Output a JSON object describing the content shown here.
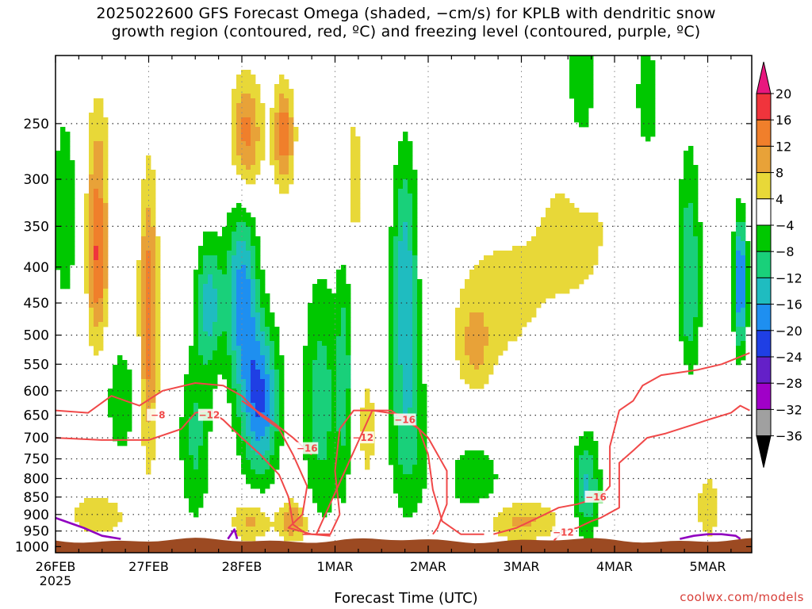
{
  "title": {
    "line1": "2025022600 GFS Forecast Omega (shaded, −cm/s) for KPLB with dendritic snow",
    "line2": "growth region (contoured, red, ºC) and freezing level (contoured, purple, ºC)"
  },
  "credit": "coolwx.com/models",
  "chart_data": {
    "type": "heatmap",
    "title": "2025022600 GFS Forecast Omega (shaded, −cm/s) for KPLB with dendritic snow growth region (contoured, red, ºC) and freezing level (contoured, purple, ºC)",
    "xlabel": "Forecast Time (UTC)",
    "ylabel": "",
    "x_ticks": [
      "26FEB",
      "27FEB",
      "28FEB",
      "1MAR",
      "2MAR",
      "3MAR",
      "4MAR",
      "5MAR"
    ],
    "x_first_tick_year": "2025",
    "x_range_days": [
      0,
      7.45
    ],
    "y_ticks_hpa": [
      250,
      300,
      350,
      400,
      450,
      500,
      550,
      600,
      650,
      700,
      750,
      800,
      850,
      900,
      950,
      1000
    ],
    "y_range_hpa": [
      200,
      1020
    ],
    "y_scale": "log-pressure, reversed",
    "grid": "dotted",
    "terrain_surface_hpa": 980,
    "terrain_color": "#9c4a22",
    "colorbar": {
      "labels": [
        "20",
        "16",
        "12",
        "8",
        "4",
        "−4",
        "−8",
        "−12",
        "−16",
        "−20",
        "−24",
        "−28",
        "−32",
        "−36"
      ],
      "bins": [
        {
          "from": 20,
          "to": 99,
          "color": "#e8177e"
        },
        {
          "from": 16,
          "to": 20,
          "color": "#f0343c"
        },
        {
          "from": 12,
          "to": 16,
          "color": "#f07f2b"
        },
        {
          "from": 8,
          "to": 12,
          "color": "#e8a238"
        },
        {
          "from": 4,
          "to": 8,
          "color": "#e8d838"
        },
        {
          "from": -4,
          "to": 4,
          "color": "#ffffff"
        },
        {
          "from": -8,
          "to": -4,
          "color": "#00c800"
        },
        {
          "from": -12,
          "to": -8,
          "color": "#19d07a"
        },
        {
          "from": -16,
          "to": -12,
          "color": "#1fbcc0"
        },
        {
          "from": -20,
          "to": -16,
          "color": "#1e8ff0"
        },
        {
          "from": -24,
          "to": -20,
          "color": "#1f3fe4"
        },
        {
          "from": -28,
          "to": -24,
          "color": "#6420c8"
        },
        {
          "from": -32,
          "to": -28,
          "color": "#a000c8"
        },
        {
          "from": -36,
          "to": -32,
          "color": "#a0a0a0"
        },
        {
          "from": -99,
          "to": -36,
          "color": "#000000"
        }
      ]
    },
    "omega_features": [
      {
        "day": 0.45,
        "hpa": 390,
        "value": 16,
        "sd": 0.08,
        "sp": 0.2
      },
      {
        "day": 0.45,
        "hpa": 270,
        "value": 6,
        "sd": 0.1,
        "sp": 0.16
      },
      {
        "day": 1.0,
        "hpa": 470,
        "value": 15,
        "sd": 0.07,
        "sp": 0.32
      },
      {
        "day": 0.1,
        "hpa": 330,
        "value": -6,
        "sd": 0.12,
        "sp": 0.3
      },
      {
        "day": 0.45,
        "hpa": 900,
        "value": 8,
        "sd": 0.22,
        "sp": 0.05
      },
      {
        "day": 0.7,
        "hpa": 620,
        "value": -7,
        "sd": 0.12,
        "sp": 0.14
      },
      {
        "day": 1.65,
        "hpa": 450,
        "value": -14,
        "sd": 0.1,
        "sp": 0.15
      },
      {
        "day": 2.0,
        "hpa": 440,
        "value": -18,
        "sd": 0.12,
        "sp": 0.22
      },
      {
        "day": 2.2,
        "hpa": 620,
        "value": -20,
        "sd": 0.14,
        "sp": 0.18
      },
      {
        "day": 2.05,
        "hpa": 260,
        "value": 14,
        "sd": 0.12,
        "sp": 0.14
      },
      {
        "day": 2.45,
        "hpa": 260,
        "value": 15,
        "sd": 0.08,
        "sp": 0.12
      },
      {
        "day": 2.85,
        "hpa": 620,
        "value": -10,
        "sd": 0.14,
        "sp": 0.3
      },
      {
        "day": 1.5,
        "hpa": 700,
        "value": -9,
        "sd": 0.12,
        "sp": 0.2
      },
      {
        "day": 3.2,
        "hpa": 300,
        "value": 6,
        "sd": 0.08,
        "sp": 0.2
      },
      {
        "day": 3.1,
        "hpa": 560,
        "value": -9,
        "sd": 0.06,
        "sp": 0.28
      },
      {
        "day": 3.35,
        "hpa": 680,
        "value": 6,
        "sd": 0.08,
        "sp": 0.15
      },
      {
        "day": 3.75,
        "hpa": 420,
        "value": -15,
        "sd": 0.1,
        "sp": 0.3
      },
      {
        "day": 3.8,
        "hpa": 700,
        "value": -8,
        "sd": 0.16,
        "sp": 0.2
      },
      {
        "day": 2.1,
        "hpa": 920,
        "value": 10,
        "sd": 0.15,
        "sp": 0.05
      },
      {
        "day": 2.55,
        "hpa": 920,
        "value": 12,
        "sd": 0.12,
        "sp": 0.05
      },
      {
        "day": 4.5,
        "hpa": 520,
        "value": 7,
        "sd": 0.12,
        "sp": 0.1
      },
      {
        "day": 4.5,
        "hpa": 800,
        "value": -7,
        "sd": 0.22,
        "sp": 0.1
      },
      {
        "day": 4.7,
        "hpa": 450,
        "value": 5,
        "sd": 0.4,
        "sp": 0.2
      },
      {
        "day": 5.0,
        "hpa": 920,
        "value": 9,
        "sd": 0.3,
        "sp": 0.05
      },
      {
        "day": 5.6,
        "hpa": 350,
        "value": 5,
        "sd": 0.4,
        "sp": 0.25
      },
      {
        "day": 5.65,
        "hpa": 220,
        "value": -8,
        "sd": 0.12,
        "sp": 0.2
      },
      {
        "day": 5.7,
        "hpa": 820,
        "value": -13,
        "sd": 0.1,
        "sp": 0.12
      },
      {
        "day": 6.35,
        "hpa": 230,
        "value": -7,
        "sd": 0.1,
        "sp": 0.15
      },
      {
        "day": 6.8,
        "hpa": 420,
        "value": -12,
        "sd": 0.09,
        "sp": 0.3
      },
      {
        "day": 6.7,
        "hpa": 600,
        "value": 5,
        "sd": 0.15,
        "sp": 0.12
      },
      {
        "day": 7.35,
        "hpa": 420,
        "value": -22,
        "sd": 0.05,
        "sp": 0.15
      },
      {
        "day": 7.0,
        "hpa": 880,
        "value": 6,
        "sd": 0.12,
        "sp": 0.1
      }
    ],
    "contours": [
      {
        "name": "-8",
        "color": "#f04848",
        "label_at": [
          1.1,
          650
        ],
        "points": [
          [
            0,
            640
          ],
          [
            0.35,
            645
          ],
          [
            0.6,
            610
          ],
          [
            0.9,
            630
          ],
          [
            1.15,
            600
          ],
          [
            1.5,
            585
          ],
          [
            1.8,
            590
          ],
          [
            2.0,
            610
          ],
          [
            2.2,
            650
          ],
          [
            2.4,
            680
          ],
          [
            2.55,
            740
          ],
          [
            2.7,
            820
          ],
          [
            2.65,
            900
          ],
          [
            2.5,
            940
          ],
          [
            2.75,
            960
          ],
          [
            2.95,
            965
          ]
        ]
      },
      {
        "name": "-12",
        "color": "#f04848",
        "label_at": [
          1.65,
          650
        ],
        "points": [
          [
            0,
            700
          ],
          [
            0.5,
            705
          ],
          [
            1.0,
            705
          ],
          [
            1.35,
            680
          ],
          [
            1.5,
            645
          ],
          [
            1.65,
            640
          ],
          [
            1.8,
            660
          ],
          [
            2.0,
            700
          ],
          [
            2.2,
            740
          ],
          [
            2.4,
            790
          ],
          [
            2.5,
            850
          ],
          [
            2.55,
            930
          ],
          [
            2.7,
            960
          ]
        ]
      },
      {
        "name": "-12",
        "color": "#f04848",
        "label_at": [
          3.3,
          700
        ],
        "points": [
          [
            2.65,
            960
          ],
          [
            2.95,
            960
          ],
          [
            3.05,
            900
          ],
          [
            3.0,
            780
          ],
          [
            3.05,
            680
          ],
          [
            3.2,
            640
          ],
          [
            3.6,
            640
          ],
          [
            3.9,
            680
          ],
          [
            4.0,
            740
          ],
          [
            4.05,
            830
          ],
          [
            4.15,
            920
          ],
          [
            4.35,
            960
          ],
          [
            4.6,
            960
          ]
        ]
      },
      {
        "name": "-16",
        "color": "#f04848",
        "label_at": [
          2.7,
          725
        ],
        "points": [
          [
            2.0,
            620
          ],
          [
            2.3,
            660
          ],
          [
            2.55,
            700
          ],
          [
            2.75,
            740
          ]
        ]
      },
      {
        "name": "-16",
        "color": "#f04848",
        "label_at": [
          3.75,
          660
        ],
        "points": [
          [
            2.8,
            960
          ],
          [
            3.4,
            640
          ],
          [
            3.75,
            650
          ],
          [
            4.0,
            700
          ],
          [
            4.2,
            780
          ],
          [
            4.2,
            870
          ],
          [
            4.1,
            940
          ],
          [
            4.05,
            960
          ]
        ]
      },
      {
        "name": "-16",
        "color": "#f04848",
        "label_at": [
          5.8,
          850
        ],
        "points": [
          [
            4.7,
            960
          ],
          [
            4.95,
            940
          ],
          [
            5.25,
            900
          ],
          [
            5.4,
            880
          ],
          [
            5.6,
            870
          ],
          [
            5.85,
            850
          ],
          [
            5.95,
            820
          ],
          [
            5.95,
            720
          ],
          [
            6.05,
            640
          ],
          [
            6.2,
            620
          ],
          [
            6.3,
            590
          ],
          [
            6.5,
            570
          ],
          [
            6.9,
            560
          ],
          [
            7.15,
            550
          ],
          [
            7.3,
            540
          ],
          [
            7.45,
            530
          ]
        ]
      },
      {
        "name": "-12",
        "color": "#f04848",
        "label_at": [
          5.45,
          955
        ],
        "points": [
          [
            5.35,
            980
          ],
          [
            5.45,
            950
          ],
          [
            5.6,
            940
          ],
          [
            5.75,
            920
          ],
          [
            5.85,
            910
          ],
          [
            6.05,
            880
          ],
          [
            6.05,
            760
          ],
          [
            6.2,
            730
          ],
          [
            6.35,
            700
          ],
          [
            6.55,
            690
          ],
          [
            6.85,
            670
          ],
          [
            7.0,
            660
          ],
          [
            7.25,
            645
          ],
          [
            7.35,
            630
          ],
          [
            7.45,
            640
          ]
        ]
      },
      {
        "name": "0",
        "color": "#9000c0",
        "label_at": null,
        "points": [
          [
            0,
            910
          ],
          [
            0.3,
            940
          ],
          [
            0.5,
            965
          ],
          [
            0.7,
            975
          ]
        ]
      },
      {
        "name": "0",
        "color": "#9000c0",
        "label_at": null,
        "points": [
          [
            1.85,
            975
          ],
          [
            1.92,
            945
          ],
          [
            1.95,
            975
          ]
        ]
      },
      {
        "name": "0",
        "color": "#9000c0",
        "label_at": null,
        "points": [
          [
            6.7,
            975
          ],
          [
            6.85,
            965
          ],
          [
            7.0,
            960
          ],
          [
            7.15,
            960
          ],
          [
            7.3,
            965
          ],
          [
            7.35,
            975
          ]
        ]
      }
    ]
  }
}
